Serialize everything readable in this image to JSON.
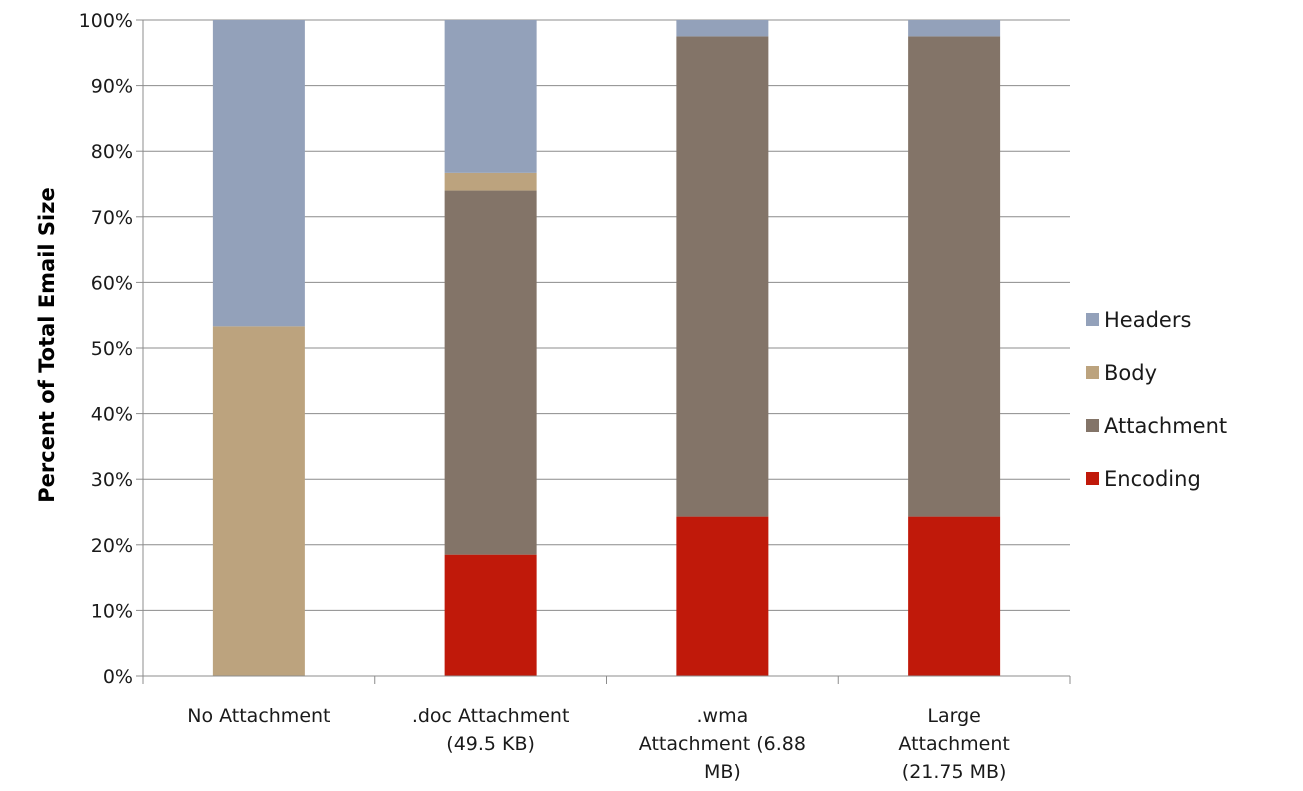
{
  "chart_data": {
    "type": "bar",
    "stacked": true,
    "title": "",
    "xlabel": "",
    "ylabel": "Percent of Total Email Size",
    "ylim": [
      0,
      100
    ],
    "y_ticks": [
      0,
      10,
      20,
      30,
      40,
      50,
      60,
      70,
      80,
      90,
      100
    ],
    "y_tick_labels": [
      "0%",
      "10%",
      "20%",
      "30%",
      "40%",
      "50%",
      "60%",
      "70%",
      "80%",
      "90%",
      "100%"
    ],
    "grid": true,
    "legend_position": "right",
    "categories": [
      "No Attachment",
      ".doc Attachment (49.5 KB)",
      ".wma Attachment (6.88 MB)",
      "Large Attachment (21.75 MB)"
    ],
    "category_lines": [
      [
        "No Attachment"
      ],
      [
        ".doc Attachment",
        "(49.5 KB)"
      ],
      [
        ".wma",
        "Attachment (6.88",
        "MB)"
      ],
      [
        "Large",
        "Attachment",
        "(21.75 MB)"
      ]
    ],
    "series": [
      {
        "name": "Encoding",
        "color": "#C0190A",
        "values": [
          0,
          18.5,
          24.3,
          24.3
        ]
      },
      {
        "name": "Attachment",
        "color": "#837468",
        "values": [
          0,
          55.5,
          73.2,
          73.2
        ]
      },
      {
        "name": "Body",
        "color": "#BCA37E",
        "values": [
          53.3,
          2.7,
          0,
          0
        ]
      },
      {
        "name": "Headers",
        "color": "#93A1BA",
        "values": [
          46.7,
          23.3,
          2.5,
          2.5
        ]
      }
    ],
    "legend_order": [
      "Headers",
      "Body",
      "Attachment",
      "Encoding"
    ]
  }
}
